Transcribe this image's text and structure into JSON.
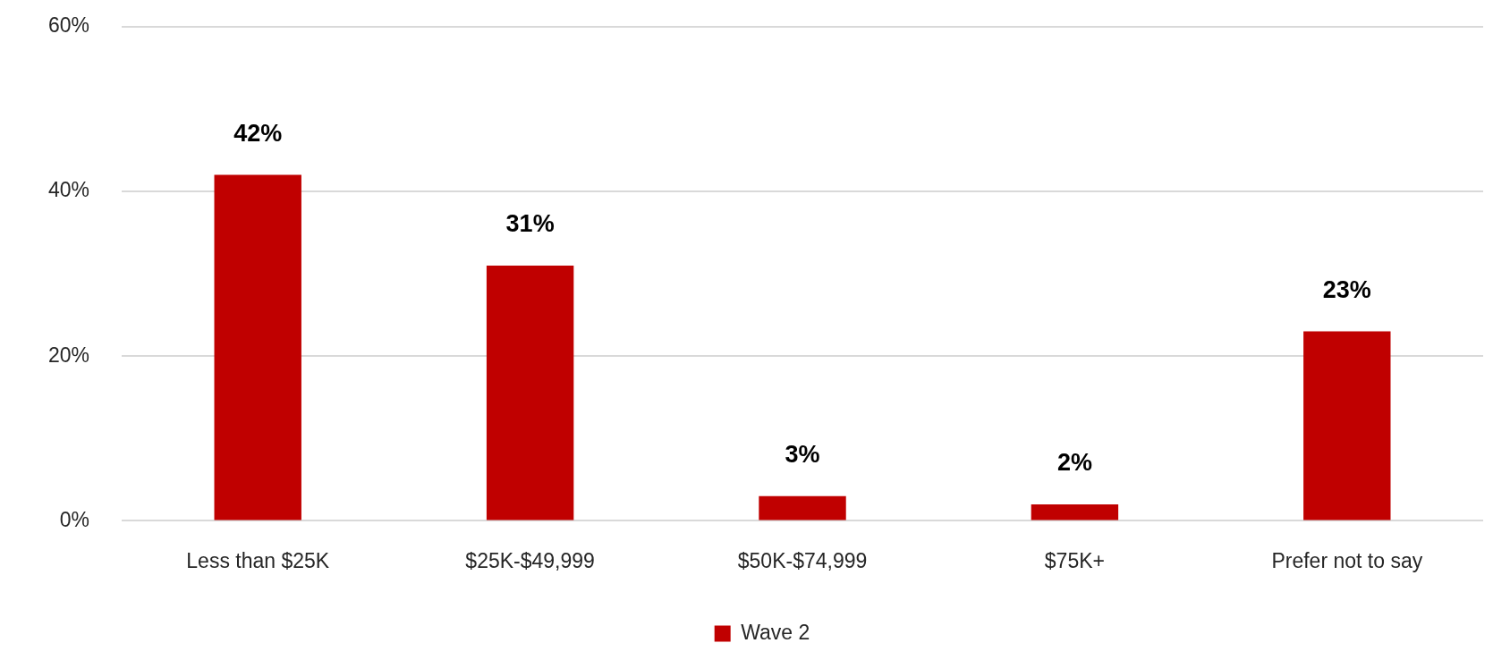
{
  "chart_data": {
    "type": "bar",
    "categories": [
      "Less than $25K",
      "$25K-$49,999",
      "$50K-$74,999",
      "$75K+",
      "Prefer not to say"
    ],
    "series": [
      {
        "name": "Wave 2",
        "color": "#c00000",
        "values": [
          42,
          31,
          3,
          2,
          23
        ]
      }
    ],
    "ylim": [
      0,
      60
    ],
    "yticks": [
      {
        "value": 0,
        "label": "0%"
      },
      {
        "value": 20,
        "label": "20%"
      },
      {
        "value": 40,
        "label": "40%"
      },
      {
        "value": 60,
        "label": "60%"
      }
    ],
    "value_labels": [
      "42%",
      "31%",
      "3%",
      "2%",
      "23%"
    ],
    "grid": "y",
    "legend": "bottom"
  }
}
